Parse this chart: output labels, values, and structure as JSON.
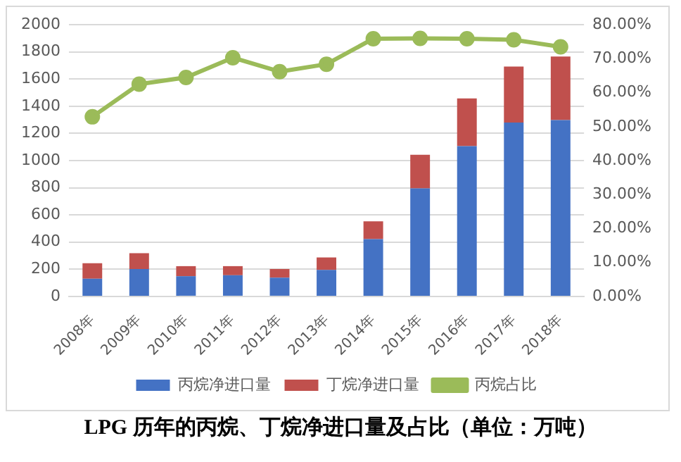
{
  "chart_data": {
    "type": "bar",
    "title": "LPG 历年的丙烷、丁烷净进口量及占比（单位：万吨）",
    "categories": [
      "2008年",
      "2009年",
      "2010年",
      "2011年",
      "2012年",
      "2013年",
      "2014年",
      "2015年",
      "2016年",
      "2017年",
      "2018年"
    ],
    "series": [
      {
        "name": "丙烷净进口量",
        "color": "#4472c4",
        "values": [
          131,
          202,
          149,
          156,
          138,
          195,
          422,
          795,
          1107,
          1280,
          1298
        ]
      },
      {
        "name": "丁烷净进口量",
        "color": "#c0504d",
        "values": [
          114,
          117,
          74,
          67,
          64,
          92,
          131,
          248,
          351,
          412,
          468
        ]
      },
      {
        "name": "丙烷占比",
        "type": "line",
        "axis": "y2",
        "color": "#9bbb59",
        "values": [
          52.9,
          62.5,
          64.5,
          70.3,
          66.2,
          68.4,
          75.9,
          76.0,
          75.9,
          75.6,
          73.5
        ]
      }
    ],
    "stacked": true,
    "ylim": [
      0,
      2000
    ],
    "yticks": [
      0,
      200,
      400,
      600,
      800,
      1000,
      1200,
      1400,
      1600,
      1800,
      2000
    ],
    "y2lim": [
      0,
      80
    ],
    "y2ticks": [
      {
        "value": 0,
        "label": "0.00%"
      },
      {
        "value": 10,
        "label": "10.00%"
      },
      {
        "value": 20,
        "label": "20.00%"
      },
      {
        "value": 30,
        "label": "30.00%"
      },
      {
        "value": 40,
        "label": "40.00%"
      },
      {
        "value": 50,
        "label": "50.00%"
      },
      {
        "value": 60,
        "label": "60.00%"
      },
      {
        "value": 70,
        "label": "70.00%"
      },
      {
        "value": 80,
        "label": "80.00%"
      }
    ],
    "grid": "y",
    "legend": "bottom",
    "marker": "circle",
    "line_style": "solid"
  }
}
